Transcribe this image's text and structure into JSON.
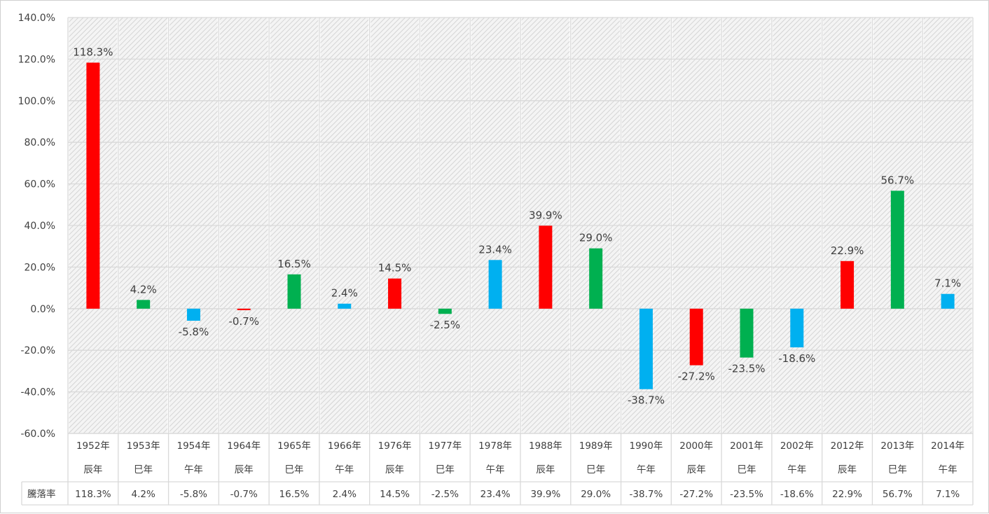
{
  "colors": {
    "red": "#ff0000",
    "green": "#00b050",
    "blue": "#00b0f0",
    "grid": "#d9d9d9",
    "text": "#404040",
    "hatch_bg": "#f2f2f2",
    "hatch_line": "#c8c8c8"
  },
  "table": {
    "row_label": "騰落率"
  },
  "chart_data": {
    "type": "bar",
    "ylim": [
      -60,
      140
    ],
    "ytick_step": 20,
    "ytick_labels": [
      "140.0%",
      "120.0%",
      "100.0%",
      "80.0%",
      "60.0%",
      "40.0%",
      "20.0%",
      "0.0%",
      "-20.0%",
      "-40.0%",
      "-60.0%"
    ],
    "grid": true,
    "data_table": true,
    "categories": [
      {
        "year": "1952年",
        "zodiac": "辰年"
      },
      {
        "year": "1953年",
        "zodiac": "巳年"
      },
      {
        "year": "1954年",
        "zodiac": "午年"
      },
      {
        "year": "1964年",
        "zodiac": "辰年"
      },
      {
        "year": "1965年",
        "zodiac": "巳年"
      },
      {
        "year": "1966年",
        "zodiac": "午年"
      },
      {
        "year": "1976年",
        "zodiac": "辰年"
      },
      {
        "year": "1977年",
        "zodiac": "巳年"
      },
      {
        "year": "1978年",
        "zodiac": "午年"
      },
      {
        "year": "1988年",
        "zodiac": "辰年"
      },
      {
        "year": "1989年",
        "zodiac": "巳年"
      },
      {
        "year": "1990年",
        "zodiac": "午年"
      },
      {
        "year": "2000年",
        "zodiac": "辰年"
      },
      {
        "year": "2001年",
        "zodiac": "巳年"
      },
      {
        "year": "2002年",
        "zodiac": "午年"
      },
      {
        "year": "2012年",
        "zodiac": "辰年"
      },
      {
        "year": "2013年",
        "zodiac": "巳年"
      },
      {
        "year": "2014年",
        "zodiac": "午年"
      }
    ],
    "series": [
      {
        "name": "騰落率",
        "values": [
          118.3,
          4.2,
          -5.8,
          -0.7,
          16.5,
          2.4,
          14.5,
          -2.5,
          23.4,
          39.9,
          29.0,
          -38.7,
          -27.2,
          -23.5,
          -18.6,
          22.9,
          56.7,
          7.1
        ],
        "labels": [
          "118.3%",
          "4.2%",
          "-5.8%",
          "-0.7%",
          "16.5%",
          "2.4%",
          "14.5%",
          "-2.5%",
          "23.4%",
          "39.9%",
          "29.0%",
          "-38.7%",
          "-27.2%",
          "-23.5%",
          "-18.6%",
          "22.9%",
          "56.7%",
          "7.1%"
        ]
      }
    ]
  }
}
